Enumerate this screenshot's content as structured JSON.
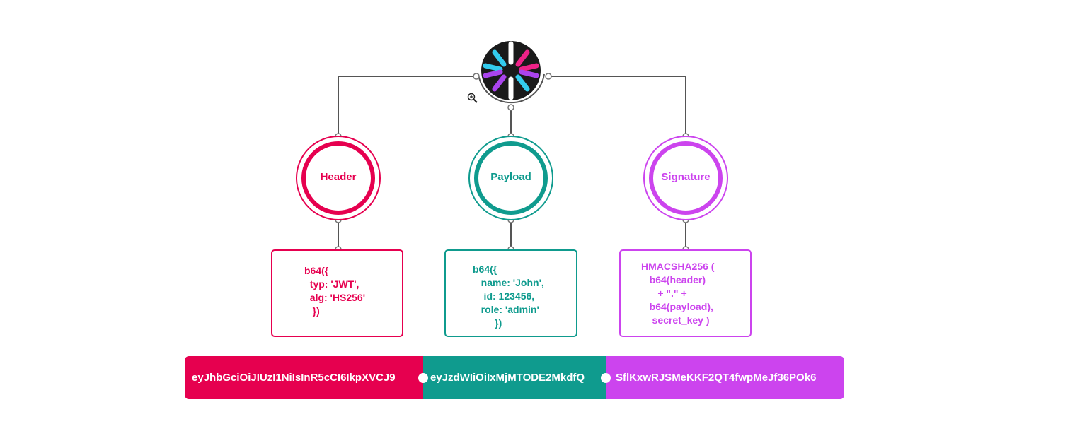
{
  "logo": {
    "name": "jwt-logo"
  },
  "colors": {
    "header": "#e6004f",
    "payload": "#0f9b8e",
    "signature": "#cc44ee",
    "connector": "#555555"
  },
  "nodes": {
    "header": {
      "label": "Header",
      "code": "b64({\n  typ: 'JWT',\n  alg: 'HS256'\n   })"
    },
    "payload": {
      "label": "Payload",
      "code": "b64({\n   name: 'John',\n    id: 123456,\n   role: 'admin'\n        })"
    },
    "signature": {
      "label": "Signature",
      "code": "HMACSHA256 (\n   b64(header)\n      + \".\" +\n   b64(payload),\n    secret_key )"
    }
  },
  "token": {
    "header": "eyJhbGciOiJIUzI1NiIsInR5cCI6IkpXVCJ9",
    "payload": "eyJzdWIiOiIxMjMTODE2MkdfQ",
    "signature": "SflKxwRJSMeKKF2QT4fwpMeJf36POk6"
  }
}
